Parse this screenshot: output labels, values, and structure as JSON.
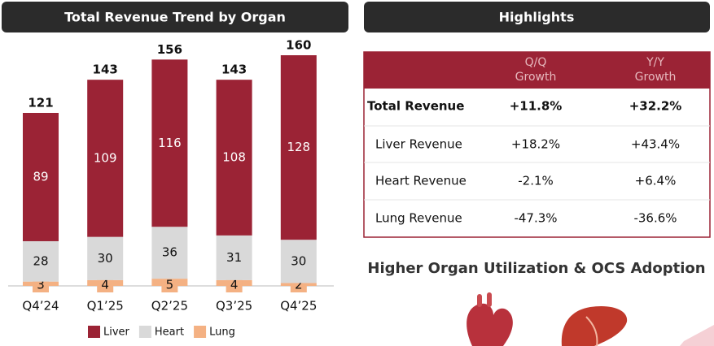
{
  "chart_data": {
    "type": "stacked-bar",
    "title": "Total Revenue Trend by Organ",
    "categories": [
      "Q4’24",
      "Q1’25",
      "Q2’25",
      "Q3’25",
      "Q4’25"
    ],
    "series": [
      {
        "name": "Liver",
        "color": "#9b2335",
        "values": [
          89,
          109,
          116,
          108,
          128
        ]
      },
      {
        "name": "Heart",
        "color": "#d9d9d9",
        "values": [
          28,
          30,
          36,
          31,
          30
        ]
      },
      {
        "name": "Lung",
        "color": "#f4b183",
        "values": [
          3,
          4,
          5,
          4,
          2
        ]
      }
    ],
    "totals": [
      121,
      143,
      156,
      143,
      160
    ]
  },
  "highlights": {
    "title": "Highlights",
    "header": [
      [
        "Q/Q",
        "Growth"
      ],
      [
        "Y/Y",
        "Growth"
      ]
    ],
    "rows": [
      [
        "Total Revenue",
        "+11.8%",
        "+32.2%"
      ],
      [
        "Liver Revenue",
        "+18.2%",
        "+43.4%"
      ],
      [
        "Heart Revenue",
        "-2.1%",
        "+6.4%"
      ],
      [
        "Lung Revenue",
        "-47.3%",
        "-36.6%"
      ]
    ]
  },
  "subheading": "Higher Organ Utilization & OCS Adoption"
}
